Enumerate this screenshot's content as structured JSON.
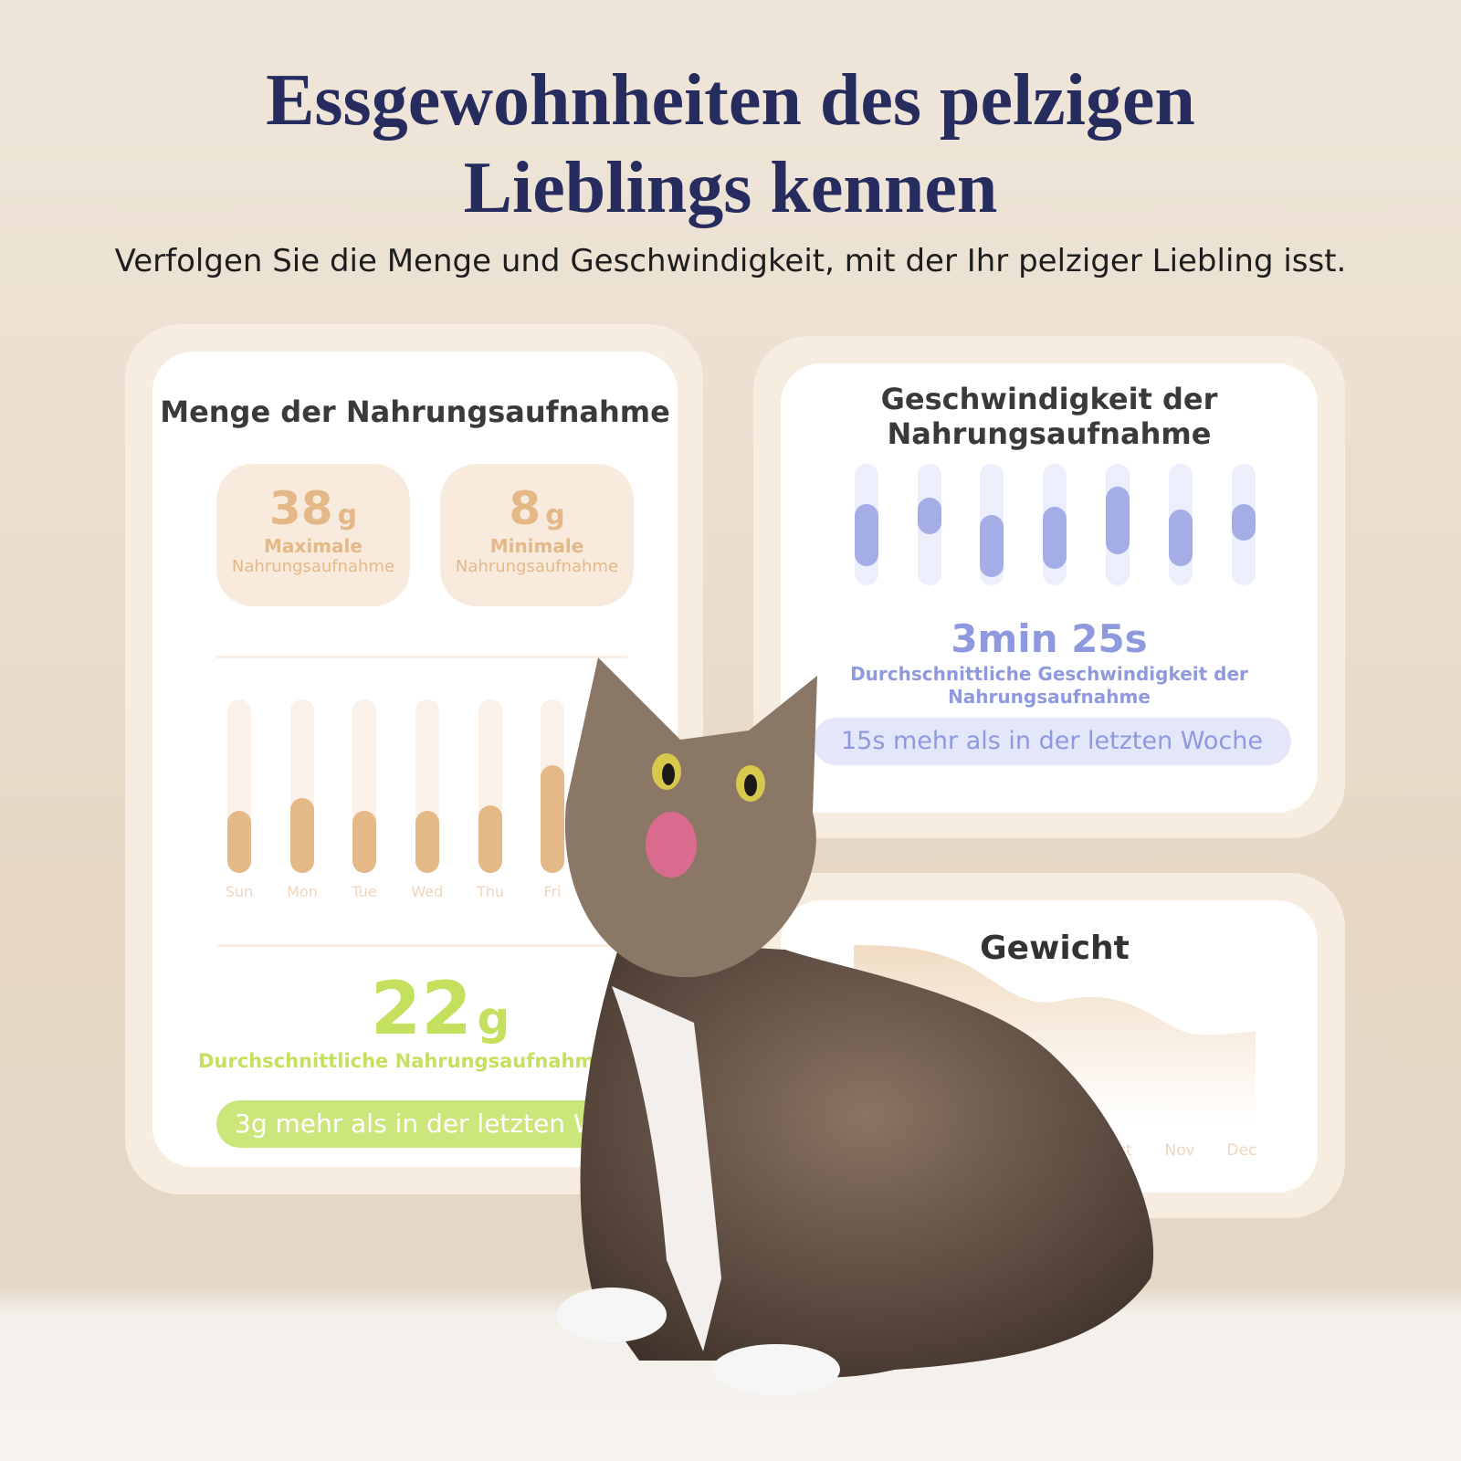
{
  "header": {
    "title_lines": [
      "Essgewohnheiten des pelzigen",
      "Lieblings kennen"
    ],
    "subtitle": "Verfolgen Sie die Menge und Geschwindigkeit, mit der Ihr pelziger Liebling isst."
  },
  "amount_card": {
    "title": "Menge der Nahrungsaufnahme",
    "stats": [
      {
        "value": 38,
        "unit": "g",
        "label": "Maximale",
        "sublabel": "Nahrungsaufnahme"
      },
      {
        "value": 8,
        "unit": "g",
        "label": "Minimale",
        "sublabel": "Nahrungsaufnahme"
      }
    ],
    "days": [
      "Sun",
      "Mon",
      "Tue",
      "Wed",
      "Thu",
      "Fri"
    ],
    "average": 22,
    "average_unit": "g",
    "average_label": "Durchschnittliche Nahrungsaufnahme",
    "badge": "3g mehr als in der letzten W"
  },
  "speed_card": {
    "title_lines": [
      "Geschwindigkeit der",
      "Nahrungsaufnahme"
    ],
    "average": "3min 25s",
    "average_label_lines": [
      "Durchschnittliche Geschwindigkeit der",
      "Nahrungsaufnahme"
    ],
    "badge": "15s mehr als in der letzten Woche"
  },
  "weight_card": {
    "title": "Gewicht",
    "months": [
      "Oct",
      "Nov",
      "Dec"
    ]
  }
}
